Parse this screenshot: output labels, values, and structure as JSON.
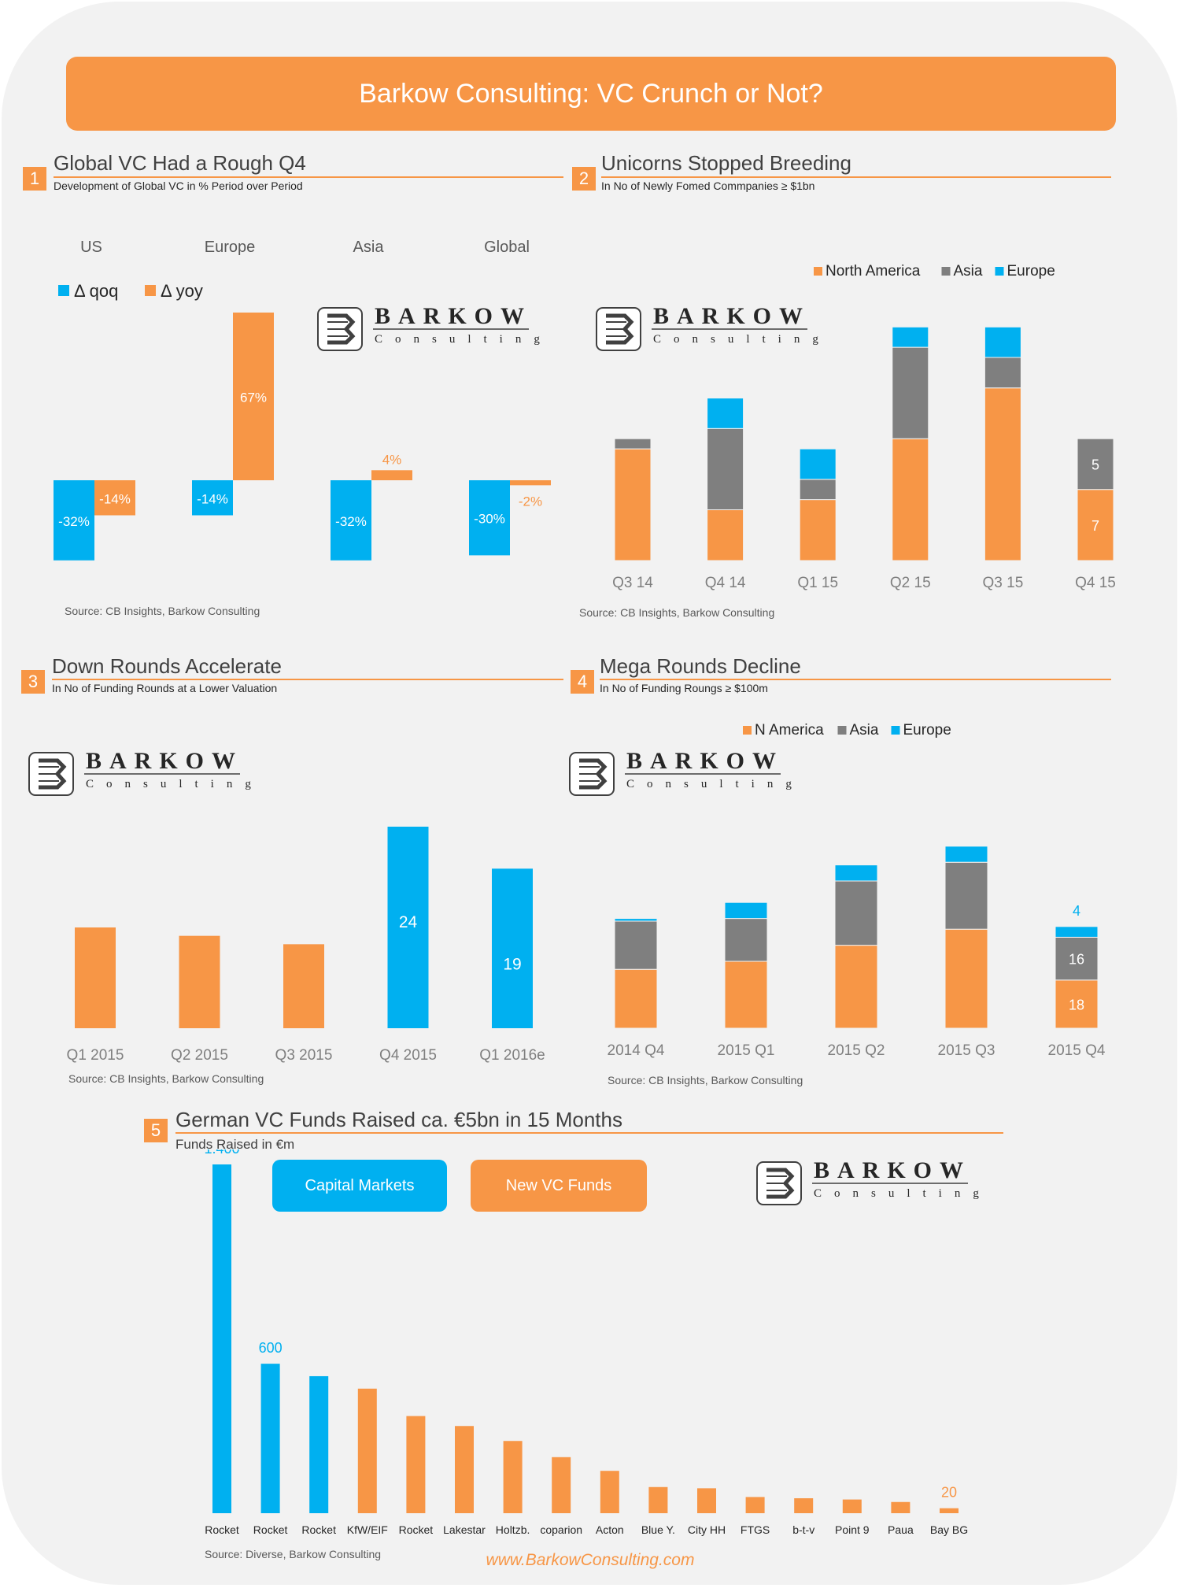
{
  "header": {
    "title": "Barkow Consulting: VC Crunch or Not?"
  },
  "logo": {
    "word": "BARKOW",
    "sub": "Consulting"
  },
  "footer": {
    "website": "www.BarkowConsulting.com"
  },
  "colors": {
    "orange": "#f79646",
    "blue": "#00b0f0",
    "gray": "#7f7f7f",
    "card": "#f2f2f2"
  },
  "sections": [
    {
      "num": "1",
      "title": "Global VC Had a Rough Q4",
      "subtitle": "Development of Global VC in % Period over Period",
      "source": "Source:  CB Insights, Barkow Consulting"
    },
    {
      "num": "2",
      "title": "Unicorns Stopped Breeding",
      "subtitle": "In No of Newly Fomed Commpanies ≥ $1bn",
      "source": "Source:  CB Insights, Barkow Consulting"
    },
    {
      "num": "3",
      "title": "Down Rounds Accelerate",
      "subtitle": "In No of  Funding Rounds at a Lower Valuation",
      "source": "Source:  CB Insights, Barkow Consulting"
    },
    {
      "num": "4",
      "title": "Mega Rounds Decline",
      "subtitle": "In No of Funding Roungs ≥ $100m",
      "source": "Source:  CB Insights, Barkow Consulting"
    },
    {
      "num": "5",
      "title": "German VC Funds Raised ca. €5bn in 15 Months",
      "subtitle": "Funds Raised in €m",
      "source": "Source:  Diverse, Barkow Consulting"
    }
  ],
  "chart5_legend": {
    "capital_markets": "Capital Markets",
    "new_vc_funds": "New  VC Funds"
  },
  "chart_data": [
    {
      "id": "global-vc",
      "type": "bar",
      "categories": [
        "US",
        "Europe",
        "Asia",
        "Global"
      ],
      "series": [
        {
          "name": "Δ qoq",
          "color": "#00b0f0",
          "values": [
            -32,
            -14,
            -32,
            -30
          ],
          "labels": [
            "-32%",
            "-14%",
            "-32%",
            "-30%"
          ]
        },
        {
          "name": "Δ yoy",
          "color": "#f79646",
          "values": [
            -14,
            67,
            4,
            -2
          ],
          "labels": [
            "-14%",
            "67%",
            "4%",
            "-2%"
          ]
        }
      ],
      "ylim": [
        -35,
        70
      ],
      "legend": "top-left"
    },
    {
      "id": "unicorns",
      "type": "bar",
      "stacked": true,
      "categories": [
        "Q3 14",
        "Q4 14",
        "Q1 15",
        "Q2 15",
        "Q3 15",
        "Q4 15"
      ],
      "series": [
        {
          "name": "North America",
          "color": "#f79646",
          "values": [
            11,
            5,
            6,
            12,
            17,
            7
          ]
        },
        {
          "name": "Asia",
          "color": "#7f7f7f",
          "values": [
            1,
            8,
            2,
            9,
            3,
            5
          ]
        },
        {
          "name": "Europe",
          "color": "#00b0f0",
          "values": [
            0,
            3,
            3,
            2,
            3,
            0
          ]
        }
      ],
      "data_labels": [
        {
          "category": "Q4 15",
          "series": "North America",
          "text": "7"
        },
        {
          "category": "Q4 15",
          "series": "Asia",
          "text": "5"
        }
      ],
      "ylim": [
        0,
        24
      ],
      "legend": "top-right"
    },
    {
      "id": "down-rounds",
      "type": "bar",
      "categories": [
        "Q1 2015",
        "Q2 2015",
        "Q3 2015",
        "Q4 2015",
        "Q1 2016e"
      ],
      "values": [
        12,
        11,
        10,
        24,
        19
      ],
      "colors": [
        "#f79646",
        "#f79646",
        "#f79646",
        "#00b0f0",
        "#00b0f0"
      ],
      "labels": [
        "",
        "",
        "",
        "24",
        "19"
      ],
      "ylim": [
        0,
        25
      ]
    },
    {
      "id": "mega-rounds",
      "type": "bar",
      "stacked": true,
      "categories": [
        "2014 Q4",
        "2015 Q1",
        "2015 Q2",
        "2015 Q3",
        "2015 Q4"
      ],
      "series": [
        {
          "name": "N America",
          "color": "#f79646",
          "values": [
            22,
            25,
            31,
            37,
            18
          ]
        },
        {
          "name": "Asia",
          "color": "#7f7f7f",
          "values": [
            18,
            16,
            24,
            25,
            16
          ]
        },
        {
          "name": "Europe",
          "color": "#00b0f0",
          "values": [
            1,
            6,
            6,
            6,
            4
          ]
        }
      ],
      "data_labels": [
        {
          "category": "2015 Q4",
          "series": "N America",
          "text": "18"
        },
        {
          "category": "2015 Q4",
          "series": "Asia",
          "text": "16"
        },
        {
          "category": "2015 Q4",
          "series": "Europe",
          "text": "4"
        }
      ],
      "ylim": [
        0,
        70
      ],
      "legend": "top-right"
    },
    {
      "id": "german-vc-funds",
      "type": "bar",
      "categories": [
        "Rocket",
        "Rocket",
        "Rocket",
        "KfW/EIF",
        "Rocket",
        "Lakestar",
        "Holtzb.",
        "coparion",
        "Acton",
        "Blue Y.",
        "City HH",
        "FTGS",
        "b-t-v",
        "Point 9",
        "Paua",
        "Bay BG"
      ],
      "values": [
        1400,
        600,
        550,
        500,
        390,
        350,
        290,
        225,
        170,
        105,
        100,
        65,
        60,
        55,
        45,
        20
      ],
      "groups": [
        "Capital Markets",
        "Capital Markets",
        "Capital Markets",
        "New  VC Funds",
        "New  VC Funds",
        "New  VC Funds",
        "New  VC Funds",
        "New  VC Funds",
        "New  VC Funds",
        "New  VC Funds",
        "New  VC Funds",
        "New  VC Funds",
        "New  VC Funds",
        "New  VC Funds",
        "New  VC Funds",
        "New  VC Funds"
      ],
      "labels": [
        "1.400",
        "600",
        "",
        "",
        "",
        "",
        "",
        "",
        "",
        "",
        "",
        "",
        "",
        "",
        "",
        "20"
      ],
      "ylim": [
        0,
        1400
      ]
    }
  ]
}
